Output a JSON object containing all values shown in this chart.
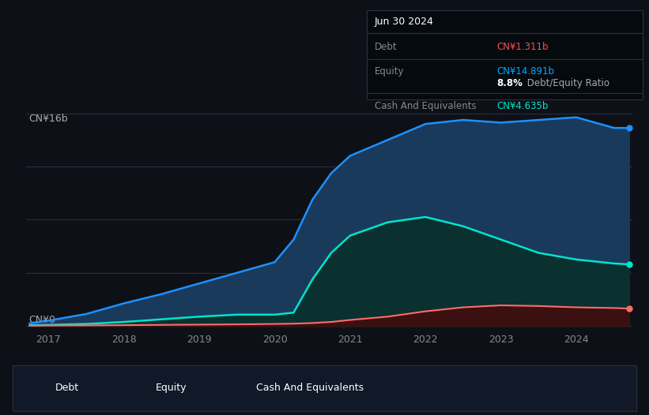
{
  "background_color": "#0d1117",
  "plot_bg_color": "#0d1117",
  "title_date": "Jun 30 2024",
  "tooltip": {
    "debt_label": "Debt",
    "debt_value": "CN¥1.311b",
    "debt_color": "#ff4d4d",
    "equity_label": "Equity",
    "equity_value": "CN¥14.891b",
    "equity_color": "#00aaff",
    "ratio_value": "8.8%",
    "ratio_text": " Debt/Equity Ratio",
    "cash_label": "Cash And Equivalents",
    "cash_value": "CN¥4.635b",
    "cash_color": "#00e5cc"
  },
  "ylabel_top": "CN¥16b",
  "ylabel_bottom": "CN¥0",
  "x_ticks": [
    2017,
    2018,
    2019,
    2020,
    2021,
    2022,
    2023,
    2024
  ],
  "xlim": [
    2016.7,
    2024.75
  ],
  "ylim": [
    -0.3,
    17.5
  ],
  "equity_color": "#1e90ff",
  "equity_fill": "#1a3a5c",
  "cash_color": "#00e5cc",
  "cash_fill": "#0a3030",
  "debt_color": "#ff6b6b",
  "debt_fill": "#3a1010",
  "grid_color": "#2a3040",
  "legend_bg": "#111827",
  "legend_border": "#2a3040",
  "years": [
    2016.75,
    2017.0,
    2017.5,
    2018.0,
    2018.5,
    2019.0,
    2019.5,
    2020.0,
    2020.25,
    2020.5,
    2020.75,
    2021.0,
    2021.5,
    2022.0,
    2022.5,
    2023.0,
    2023.5,
    2024.0,
    2024.5,
    2024.7
  ],
  "equity_values": [
    0.2,
    0.4,
    0.9,
    1.7,
    2.4,
    3.2,
    4.0,
    4.8,
    6.5,
    9.5,
    11.5,
    12.8,
    14.0,
    15.2,
    15.5,
    15.3,
    15.5,
    15.7,
    14.9,
    14.891
  ],
  "cash_values": [
    0.05,
    0.08,
    0.15,
    0.3,
    0.5,
    0.7,
    0.85,
    0.85,
    1.0,
    3.5,
    5.5,
    6.8,
    7.8,
    8.2,
    7.5,
    6.5,
    5.5,
    5.0,
    4.7,
    4.635
  ],
  "debt_values": [
    0.02,
    0.03,
    0.04,
    0.06,
    0.08,
    0.1,
    0.12,
    0.15,
    0.17,
    0.22,
    0.3,
    0.45,
    0.7,
    1.1,
    1.4,
    1.55,
    1.5,
    1.4,
    1.35,
    1.311
  ]
}
